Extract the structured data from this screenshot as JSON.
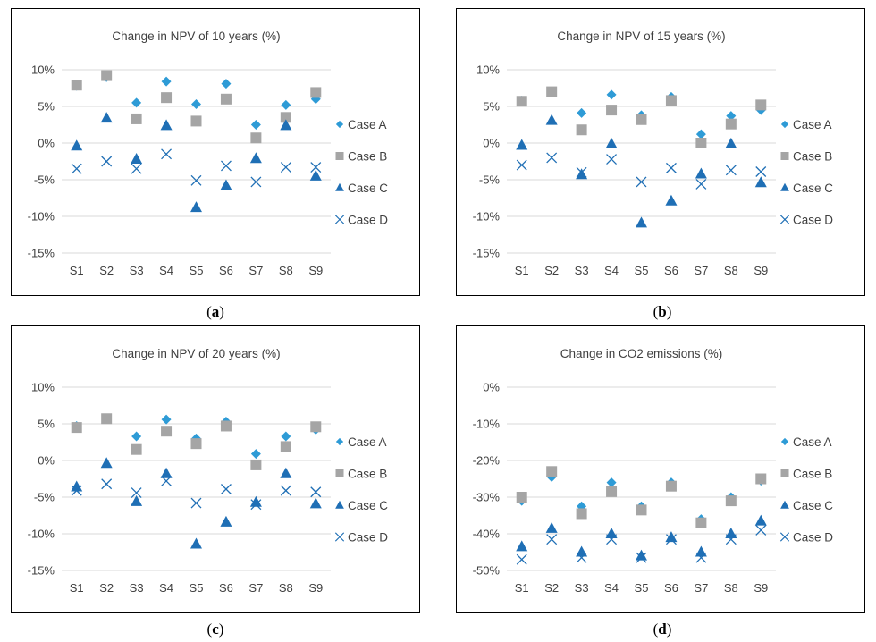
{
  "panels": [
    {
      "caption": "a",
      "chart_data": {
        "type": "scatter",
        "title": "Change in NPV of 10 years (%)",
        "categories": [
          "S1",
          "S2",
          "S3",
          "S4",
          "S5",
          "S6",
          "S7",
          "S8",
          "S9"
        ],
        "ylim": [
          -15,
          10
        ],
        "yticks": [
          10,
          5,
          0,
          -5,
          -10,
          -15
        ],
        "ytick_labels": [
          "10%",
          "5%",
          "0%",
          "-5%",
          "-10%",
          "-15%"
        ],
        "grid": true,
        "legend": "right",
        "series": [
          {
            "name": "Case A",
            "marker": "diamond",
            "color": "#2E9BD6",
            "values": [
              7.8,
              9.0,
              5.5,
              8.4,
              5.3,
              8.1,
              2.5,
              5.2,
              6.0
            ]
          },
          {
            "name": "Case B",
            "marker": "square",
            "color": "#A5A5A5",
            "values": [
              7.9,
              9.2,
              3.3,
              6.2,
              3.0,
              6.0,
              0.7,
              3.5,
              6.9
            ]
          },
          {
            "name": "Case C",
            "marker": "triangle",
            "color": "#1F6FB5",
            "values": [
              -0.4,
              3.4,
              -2.2,
              2.4,
              -8.8,
              -5.8,
              -2.1,
              2.4,
              -4.5
            ]
          },
          {
            "name": "Case D",
            "marker": "x",
            "color": "#1F6FB5",
            "values": [
              -3.5,
              -2.5,
              -3.5,
              -1.5,
              -5.1,
              -3.1,
              -5.3,
              -3.3,
              -3.3
            ]
          }
        ]
      }
    },
    {
      "caption": "b",
      "chart_data": {
        "type": "scatter",
        "title": "Change in NPV of 15 years  (%)",
        "categories": [
          "S1",
          "S2",
          "S3",
          "S4",
          "S5",
          "S6",
          "S7",
          "S8",
          "S9"
        ],
        "ylim": [
          -15,
          10
        ],
        "yticks": [
          10,
          5,
          0,
          -5,
          -10,
          -15
        ],
        "ytick_labels": [
          "10%",
          "5%",
          "0%",
          "-5%",
          "-10%",
          "-15%"
        ],
        "grid": true,
        "legend": "right",
        "series": [
          {
            "name": "Case A",
            "marker": "diamond",
            "color": "#2E9BD6",
            "values": [
              5.8,
              6.9,
              4.1,
              6.6,
              3.8,
              6.3,
              1.2,
              3.7,
              4.5
            ]
          },
          {
            "name": "Case B",
            "marker": "square",
            "color": "#A5A5A5",
            "values": [
              5.7,
              7.0,
              1.8,
              4.5,
              3.2,
              5.8,
              0.0,
              2.6,
              5.2
            ]
          },
          {
            "name": "Case C",
            "marker": "triangle",
            "color": "#1F6FB5",
            "values": [
              -0.3,
              3.1,
              -4.3,
              -0.1,
              -10.9,
              -7.9,
              -4.2,
              -0.1,
              -5.4
            ]
          },
          {
            "name": "Case D",
            "marker": "x",
            "color": "#1F6FB5",
            "values": [
              -3.0,
              -2.0,
              -4.0,
              -2.2,
              -5.3,
              -3.4,
              -5.6,
              -3.7,
              -3.9
            ]
          }
        ]
      }
    },
    {
      "caption": "c",
      "chart_data": {
        "type": "scatter",
        "title": "Change in NPV of 20 years  (%)",
        "categories": [
          "S1",
          "S2",
          "S3",
          "S4",
          "S5",
          "S6",
          "S7",
          "S8",
          "S9"
        ],
        "ylim": [
          -15,
          10
        ],
        "yticks": [
          10,
          5,
          0,
          -5,
          -10,
          -15
        ],
        "ytick_labels": [
          "10%",
          "5%",
          "0%",
          "-5%",
          "-10%",
          "-15%"
        ],
        "grid": true,
        "legend": "right",
        "series": [
          {
            "name": "Case A",
            "marker": "diamond",
            "color": "#2E9BD6",
            "values": [
              4.7,
              5.7,
              3.3,
              5.6,
              3.0,
              5.3,
              0.9,
              3.3,
              4.2
            ]
          },
          {
            "name": "Case B",
            "marker": "square",
            "color": "#A5A5A5",
            "values": [
              4.5,
              5.7,
              1.5,
              4.0,
              2.3,
              4.7,
              -0.6,
              1.9,
              4.6
            ]
          },
          {
            "name": "Case C",
            "marker": "triangle",
            "color": "#1F6FB5",
            "values": [
              -3.6,
              -0.4,
              -5.6,
              -1.8,
              -11.4,
              -8.4,
              -5.7,
              -1.8,
              -5.9
            ]
          },
          {
            "name": "Case D",
            "marker": "x",
            "color": "#1F6FB5",
            "values": [
              -4.1,
              -3.2,
              -4.4,
              -2.8,
              -5.8,
              -3.9,
              -6.0,
              -4.1,
              -4.3
            ]
          }
        ]
      }
    },
    {
      "caption": "d",
      "chart_data": {
        "type": "scatter",
        "title": "Change in CO2 emissions (%)",
        "categories": [
          "S1",
          "S2",
          "S3",
          "S4",
          "S5",
          "S6",
          "S7",
          "S8",
          "S9"
        ],
        "ylim": [
          -50,
          0
        ],
        "yticks": [
          0,
          -10,
          -20,
          -30,
          -40,
          -50
        ],
        "ytick_labels": [
          "0%",
          "-10%",
          "-20%",
          "-30%",
          "-40%",
          "-50%"
        ],
        "grid": true,
        "legend": "right",
        "series": [
          {
            "name": "Case A",
            "marker": "diamond",
            "color": "#2E9BD6",
            "values": [
              -31,
              -24.5,
              -32.5,
              -26,
              -32.5,
              -26,
              -36,
              -30,
              -25.5
            ]
          },
          {
            "name": "Case B",
            "marker": "square",
            "color": "#A5A5A5",
            "values": [
              -30,
              -23,
              -34.5,
              -28.5,
              -33.5,
              -27,
              -37,
              -31,
              -25
            ]
          },
          {
            "name": "Case C",
            "marker": "triangle",
            "color": "#1F6FB5",
            "values": [
              -43.5,
              -38.5,
              -45,
              -40,
              -46,
              -41,
              -45,
              -40,
              -36.5
            ]
          },
          {
            "name": "Case D",
            "marker": "x",
            "color": "#1F6FB5",
            "values": [
              -47,
              -41.5,
              -46.5,
              -41.5,
              -46.5,
              -41.5,
              -46.5,
              -41.5,
              -39
            ]
          }
        ]
      }
    }
  ]
}
